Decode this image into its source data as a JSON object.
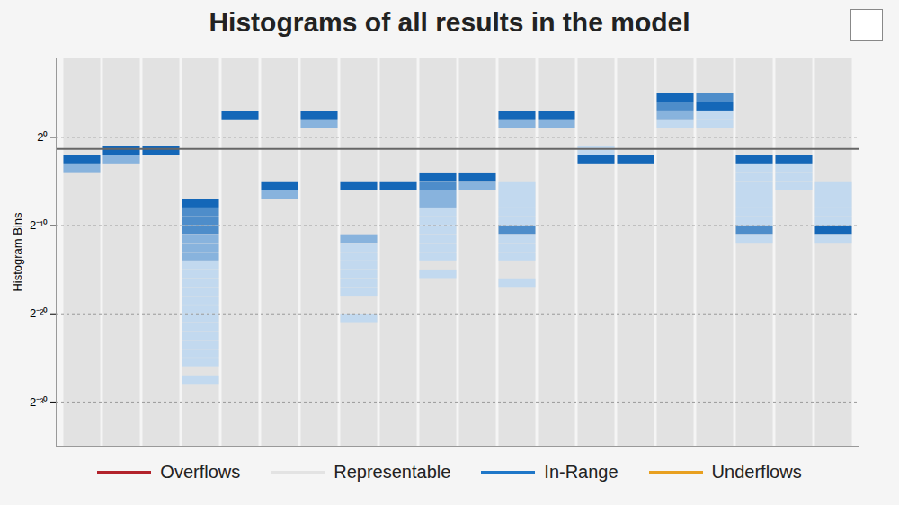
{
  "chart_data": {
    "type": "heatmap",
    "title": "Histograms of all results in the model",
    "y_label": "Histogram Bins",
    "categories": [
      null,
      null,
      null,
      null,
      null,
      null,
      null,
      null,
      null,
      null,
      null,
      null,
      null,
      null,
      null,
      null,
      null,
      null,
      null,
      null
    ],
    "columns": [
      {
        "bin_tops": [
          -2,
          -3
        ],
        "levels": [
          4,
          2
        ]
      },
      {
        "bin_tops": [
          -1,
          -2
        ],
        "levels": [
          4,
          2
        ]
      },
      {
        "bin_tops": [
          -1
        ],
        "levels": [
          4
        ]
      },
      {
        "bin_tops": [
          -7,
          -8,
          -9,
          -10,
          -11,
          -12,
          -13,
          -14,
          -15,
          -16,
          -17,
          -18,
          -19,
          -20,
          -21,
          -22,
          -23,
          -24,
          -25,
          -27
        ],
        "levels": [
          4,
          3,
          3,
          3,
          2,
          2,
          2,
          1,
          1,
          1,
          1,
          1,
          1,
          1,
          1,
          1,
          1,
          1,
          1,
          1
        ]
      },
      {
        "bin_tops": [
          3
        ],
        "levels": [
          4
        ]
      },
      {
        "bin_tops": [
          -5,
          -6
        ],
        "levels": [
          4,
          2
        ]
      },
      {
        "bin_tops": [
          3,
          2
        ],
        "levels": [
          4,
          2
        ]
      },
      {
        "bin_tops": [
          -5,
          -11,
          -12,
          -13,
          -14,
          -15,
          -16,
          -17,
          -20
        ],
        "levels": [
          4,
          2,
          1,
          1,
          1,
          1,
          1,
          1,
          1
        ]
      },
      {
        "bin_tops": [
          -5
        ],
        "levels": [
          4
        ]
      },
      {
        "bin_tops": [
          -4,
          -5,
          -6,
          -7,
          -8,
          -9,
          -10,
          -11,
          -12,
          -13,
          -15
        ],
        "levels": [
          4,
          3,
          2,
          2,
          1,
          1,
          1,
          1,
          1,
          1,
          1
        ]
      },
      {
        "bin_tops": [
          -4,
          -5
        ],
        "levels": [
          4,
          2
        ]
      },
      {
        "bin_tops": [
          3,
          2,
          -5,
          -6,
          -7,
          -8,
          -9,
          -10,
          -11,
          -12,
          -13,
          -16
        ],
        "levels": [
          4,
          2,
          1,
          1,
          1,
          1,
          1,
          3,
          1,
          1,
          1,
          1
        ]
      },
      {
        "bin_tops": [
          3,
          2
        ],
        "levels": [
          4,
          2
        ]
      },
      {
        "bin_tops": [
          -1,
          -2
        ],
        "levels": [
          1,
          4
        ]
      },
      {
        "bin_tops": [
          -2
        ],
        "levels": [
          4
        ]
      },
      {
        "bin_tops": [
          5,
          4,
          3,
          2
        ],
        "levels": [
          4,
          3,
          2,
          1
        ]
      },
      {
        "bin_tops": [
          5,
          4,
          3,
          2
        ],
        "levels": [
          3,
          4,
          1,
          1
        ]
      },
      {
        "bin_tops": [
          -2,
          -3,
          -4,
          -5,
          -6,
          -7,
          -8,
          -9,
          -10,
          -11
        ],
        "levels": [
          4,
          1,
          1,
          1,
          1,
          1,
          1,
          1,
          3,
          1
        ]
      },
      {
        "bin_tops": [
          -2,
          -3,
          -4,
          -5
        ],
        "levels": [
          4,
          1,
          1,
          1
        ]
      },
      {
        "bin_tops": [
          -5,
          -6,
          -7,
          -8,
          -9,
          -10,
          -11
        ],
        "levels": [
          1,
          1,
          1,
          1,
          1,
          4,
          1
        ]
      }
    ],
    "level_range": [
      1,
      4
    ],
    "reference_line": -1.3,
    "ylim": [
      -35,
      9
    ],
    "yticks": [
      {
        "value": 0,
        "label": "2⁰"
      },
      {
        "value": -10,
        "label": "2⁻¹⁰"
      },
      {
        "value": -20,
        "label": "2⁻²⁰"
      },
      {
        "value": -30,
        "label": "2⁻³⁰"
      }
    ],
    "grid": true,
    "tick_labels": "y",
    "legend": "bottom",
    "legend_items": [
      {
        "name": "Overflows",
        "color": "#b2222b"
      },
      {
        "name": "Representable",
        "color": "#e3e3e3"
      },
      {
        "name": "In-Range",
        "color": "#1f77c8"
      },
      {
        "name": "Underflows",
        "color": "#e8a020"
      }
    ]
  }
}
